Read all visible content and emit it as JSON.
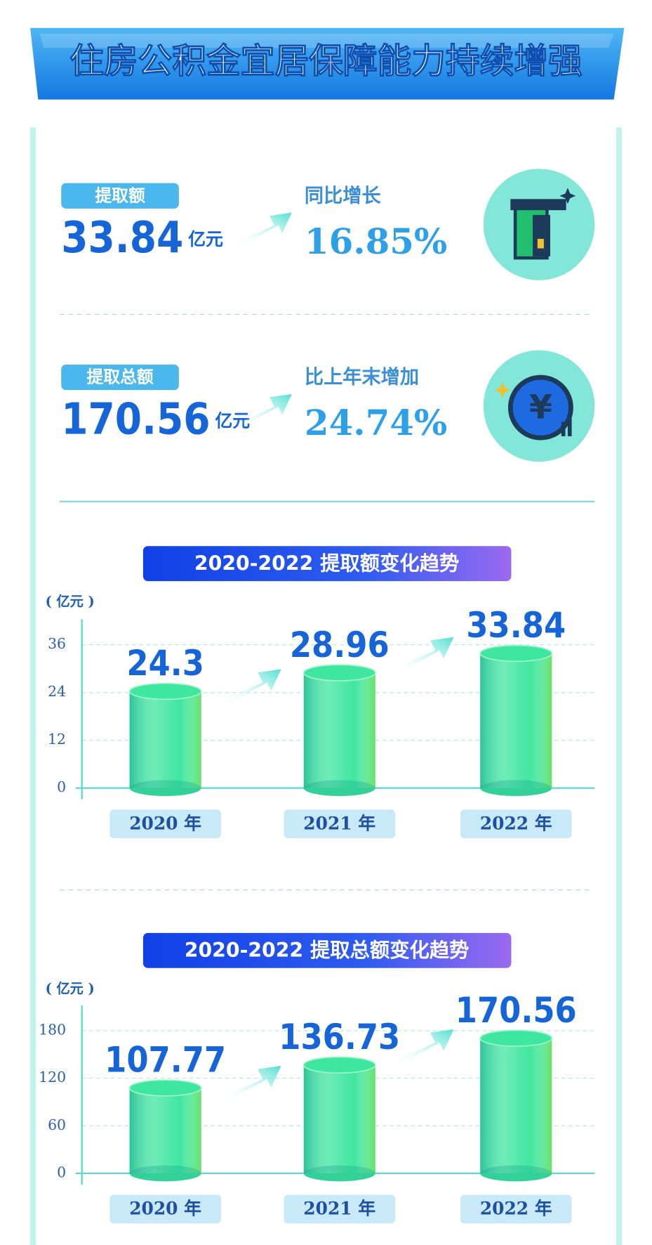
{
  "title": "住房公积金宜居保障能力持续增强",
  "stats": [
    {
      "label": "提取额",
      "value": "33.84",
      "unit": "亿元",
      "change_label": "同比增长",
      "change": "16.85%"
    },
    {
      "label": "提取总额",
      "value": "170.56",
      "unit": "亿元",
      "change_label": "比上年末增加",
      "change": "24.74%"
    }
  ],
  "chart_data": [
    {
      "type": "bar",
      "title": "2020-2022 提取额变化趋势",
      "y_label": "( 亿元 )",
      "categories": [
        "2020 年",
        "2021 年",
        "2022 年"
      ],
      "values": [
        24.3,
        28.96,
        33.84
      ],
      "color": "#3fe6a0",
      "ylim": [
        0,
        40
      ],
      "yticks": [
        0,
        12,
        24,
        36
      ],
      "grid": true
    },
    {
      "type": "bar",
      "title": "2020-2022 提取总额变化趋势",
      "y_label": "( 亿元 )",
      "categories": [
        "2020 年",
        "2021 年",
        "2022 年"
      ],
      "values": [
        107.77,
        136.73,
        170.56
      ],
      "color": "#3fe6a0",
      "ylim": [
        0,
        200
      ],
      "yticks": [
        0,
        60,
        120,
        180
      ],
      "grid": true
    }
  ]
}
